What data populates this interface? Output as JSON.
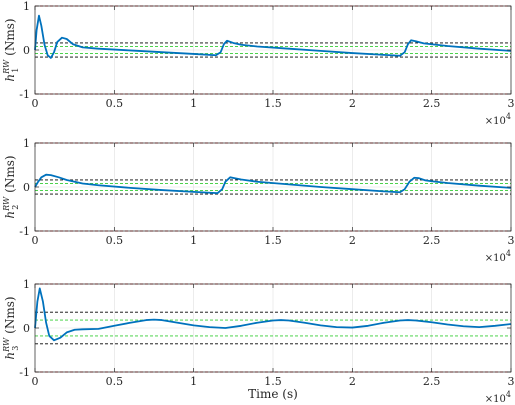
{
  "figure": {
    "xlabel": "Time (s)",
    "colors": {
      "series": "#0072BD",
      "limit": "#D62728",
      "threshold_black": "#000000",
      "threshold_green": "#33CC33",
      "grid": "#DFDFDF",
      "axes": "#262626"
    }
  },
  "chart_data": [
    {
      "type": "line",
      "ylabel_base": "h",
      "ylabel_sub": "1",
      "ylabel_sup": "RW",
      "ylabel_unit": " (Nms)",
      "xlim": [
        0,
        30000
      ],
      "ylim": [
        -1,
        1
      ],
      "x_ticks": [
        0,
        5000,
        10000,
        15000,
        20000,
        25000,
        30000
      ],
      "x_tick_labels": [
        "0",
        "0.5",
        "1",
        "1.5",
        "2",
        "2.5",
        "3"
      ],
      "x_exponent_base": "×10",
      "x_exponent_power": "4",
      "y_ticks": [
        -1,
        0,
        1
      ],
      "y_tick_labels": [
        "-1",
        "0",
        "1"
      ],
      "grid": true,
      "hlines": [
        {
          "y": 1,
          "style": "dashed",
          "color": "#D62728"
        },
        {
          "y": -1,
          "style": "dashed",
          "color": "#D62728"
        },
        {
          "y": 0.16,
          "style": "dashed",
          "color": "#000000"
        },
        {
          "y": -0.16,
          "style": "dashed",
          "color": "#000000"
        },
        {
          "y": 0.08,
          "style": "dashed",
          "color": "#33CC33"
        },
        {
          "y": -0.08,
          "style": "dashed",
          "color": "#33CC33"
        }
      ],
      "series": [
        {
          "x": [
            0,
            100,
            250,
            400,
            600,
            800,
            1000,
            1200,
            1400,
            1700,
            2000,
            2400,
            3000,
            4000,
            6000,
            8000,
            10000,
            11400,
            11700,
            11900,
            12100,
            12500,
            13000,
            14000,
            16000,
            18000,
            20000,
            22000,
            23000,
            23300,
            23500,
            23700,
            24000,
            24500,
            25000,
            26000,
            28000,
            30000
          ],
          "y": [
            0,
            0.45,
            0.78,
            0.55,
            0.12,
            -0.12,
            -0.18,
            -0.05,
            0.18,
            0.28,
            0.25,
            0.13,
            0.06,
            0.03,
            -0.01,
            -0.05,
            -0.09,
            -0.12,
            -0.05,
            0.13,
            0.21,
            0.16,
            0.12,
            0.08,
            0.03,
            -0.02,
            -0.07,
            -0.11,
            -0.13,
            -0.05,
            0.13,
            0.22,
            0.2,
            0.15,
            0.13,
            0.09,
            0.03,
            -0.02
          ]
        }
      ]
    },
    {
      "type": "line",
      "ylabel_base": "h",
      "ylabel_sub": "2",
      "ylabel_sup": "RW",
      "ylabel_unit": " (Nms)",
      "xlim": [
        0,
        30000
      ],
      "ylim": [
        -1,
        1
      ],
      "x_ticks": [
        0,
        5000,
        10000,
        15000,
        20000,
        25000,
        30000
      ],
      "x_tick_labels": [
        "0",
        "0.5",
        "1",
        "1.5",
        "2",
        "2.5",
        "3"
      ],
      "x_exponent_base": "×10",
      "x_exponent_power": "4",
      "y_ticks": [
        -1,
        0,
        1
      ],
      "y_tick_labels": [
        "-1",
        "0",
        "1"
      ],
      "grid": true,
      "hlines": [
        {
          "y": 1,
          "style": "dashed",
          "color": "#D62728"
        },
        {
          "y": -1,
          "style": "dashed",
          "color": "#D62728"
        },
        {
          "y": 0.16,
          "style": "dashed",
          "color": "#000000"
        },
        {
          "y": -0.16,
          "style": "dashed",
          "color": "#000000"
        },
        {
          "y": 0.08,
          "style": "dashed",
          "color": "#33CC33"
        },
        {
          "y": -0.08,
          "style": "dashed",
          "color": "#33CC33"
        }
      ],
      "series": [
        {
          "x": [
            0,
            200,
            400,
            700,
            1000,
            1500,
            2000,
            3000,
            4000,
            6000,
            8000,
            10000,
            11500,
            11800,
            12000,
            12300,
            12600,
            13000,
            14000,
            16000,
            18000,
            20000,
            22000,
            23000,
            23300,
            23600,
            23900,
            24200,
            24600,
            25000,
            26000,
            28000,
            30000
          ],
          "y": [
            0,
            0.12,
            0.22,
            0.28,
            0.27,
            0.22,
            0.16,
            0.08,
            0.04,
            -0.02,
            -0.07,
            -0.11,
            -0.14,
            -0.05,
            0.12,
            0.22,
            0.2,
            0.17,
            0.12,
            0.06,
            0.0,
            -0.05,
            -0.1,
            -0.12,
            -0.05,
            0.12,
            0.21,
            0.2,
            0.15,
            0.13,
            0.09,
            0.03,
            -0.02
          ]
        }
      ]
    },
    {
      "type": "line",
      "ylabel_base": "h",
      "ylabel_sub": "3",
      "ylabel_sup": "RW",
      "ylabel_unit": " (Nms)",
      "xlim": [
        0,
        30000
      ],
      "ylim": [
        -1,
        1
      ],
      "x_ticks": [
        0,
        5000,
        10000,
        15000,
        20000,
        25000,
        30000
      ],
      "x_tick_labels": [
        "0",
        "0.5",
        "1",
        "1.5",
        "2",
        "2.5",
        "3"
      ],
      "x_exponent_base": "×10",
      "x_exponent_power": "4",
      "y_ticks": [
        -1,
        0,
        1
      ],
      "y_tick_labels": [
        "-1",
        "0",
        "1"
      ],
      "grid": true,
      "hlines": [
        {
          "y": 1,
          "style": "dashed",
          "color": "#D62728"
        },
        {
          "y": -1,
          "style": "dashed",
          "color": "#D62728"
        },
        {
          "y": 0.36,
          "style": "dashed",
          "color": "#000000"
        },
        {
          "y": -0.36,
          "style": "dashed",
          "color": "#000000"
        },
        {
          "y": 0.18,
          "style": "dashed",
          "color": "#33CC33"
        },
        {
          "y": -0.18,
          "style": "dashed",
          "color": "#33CC33"
        }
      ],
      "series": [
        {
          "x": [
            0,
            150,
            300,
            500,
            700,
            900,
            1200,
            1600,
            2000,
            2500,
            3000,
            4000,
            5000,
            6000,
            7000,
            7500,
            8000,
            9000,
            10000,
            11000,
            12000,
            13000,
            14000,
            15000,
            15500,
            16000,
            17000,
            18000,
            19000,
            20000,
            21000,
            22000,
            23000,
            23500,
            24000,
            25000,
            26000,
            27000,
            28000,
            29000,
            30000
          ],
          "y": [
            0,
            0.6,
            0.9,
            0.6,
            0.12,
            -0.18,
            -0.28,
            -0.22,
            -0.1,
            -0.04,
            -0.03,
            -0.02,
            0.05,
            0.12,
            0.18,
            0.19,
            0.18,
            0.12,
            0.06,
            0.02,
            0.0,
            0.05,
            0.12,
            0.17,
            0.18,
            0.17,
            0.12,
            0.06,
            0.02,
            0.01,
            0.05,
            0.12,
            0.17,
            0.18,
            0.17,
            0.13,
            0.08,
            0.04,
            0.02,
            0.05,
            0.09
          ]
        }
      ]
    }
  ]
}
